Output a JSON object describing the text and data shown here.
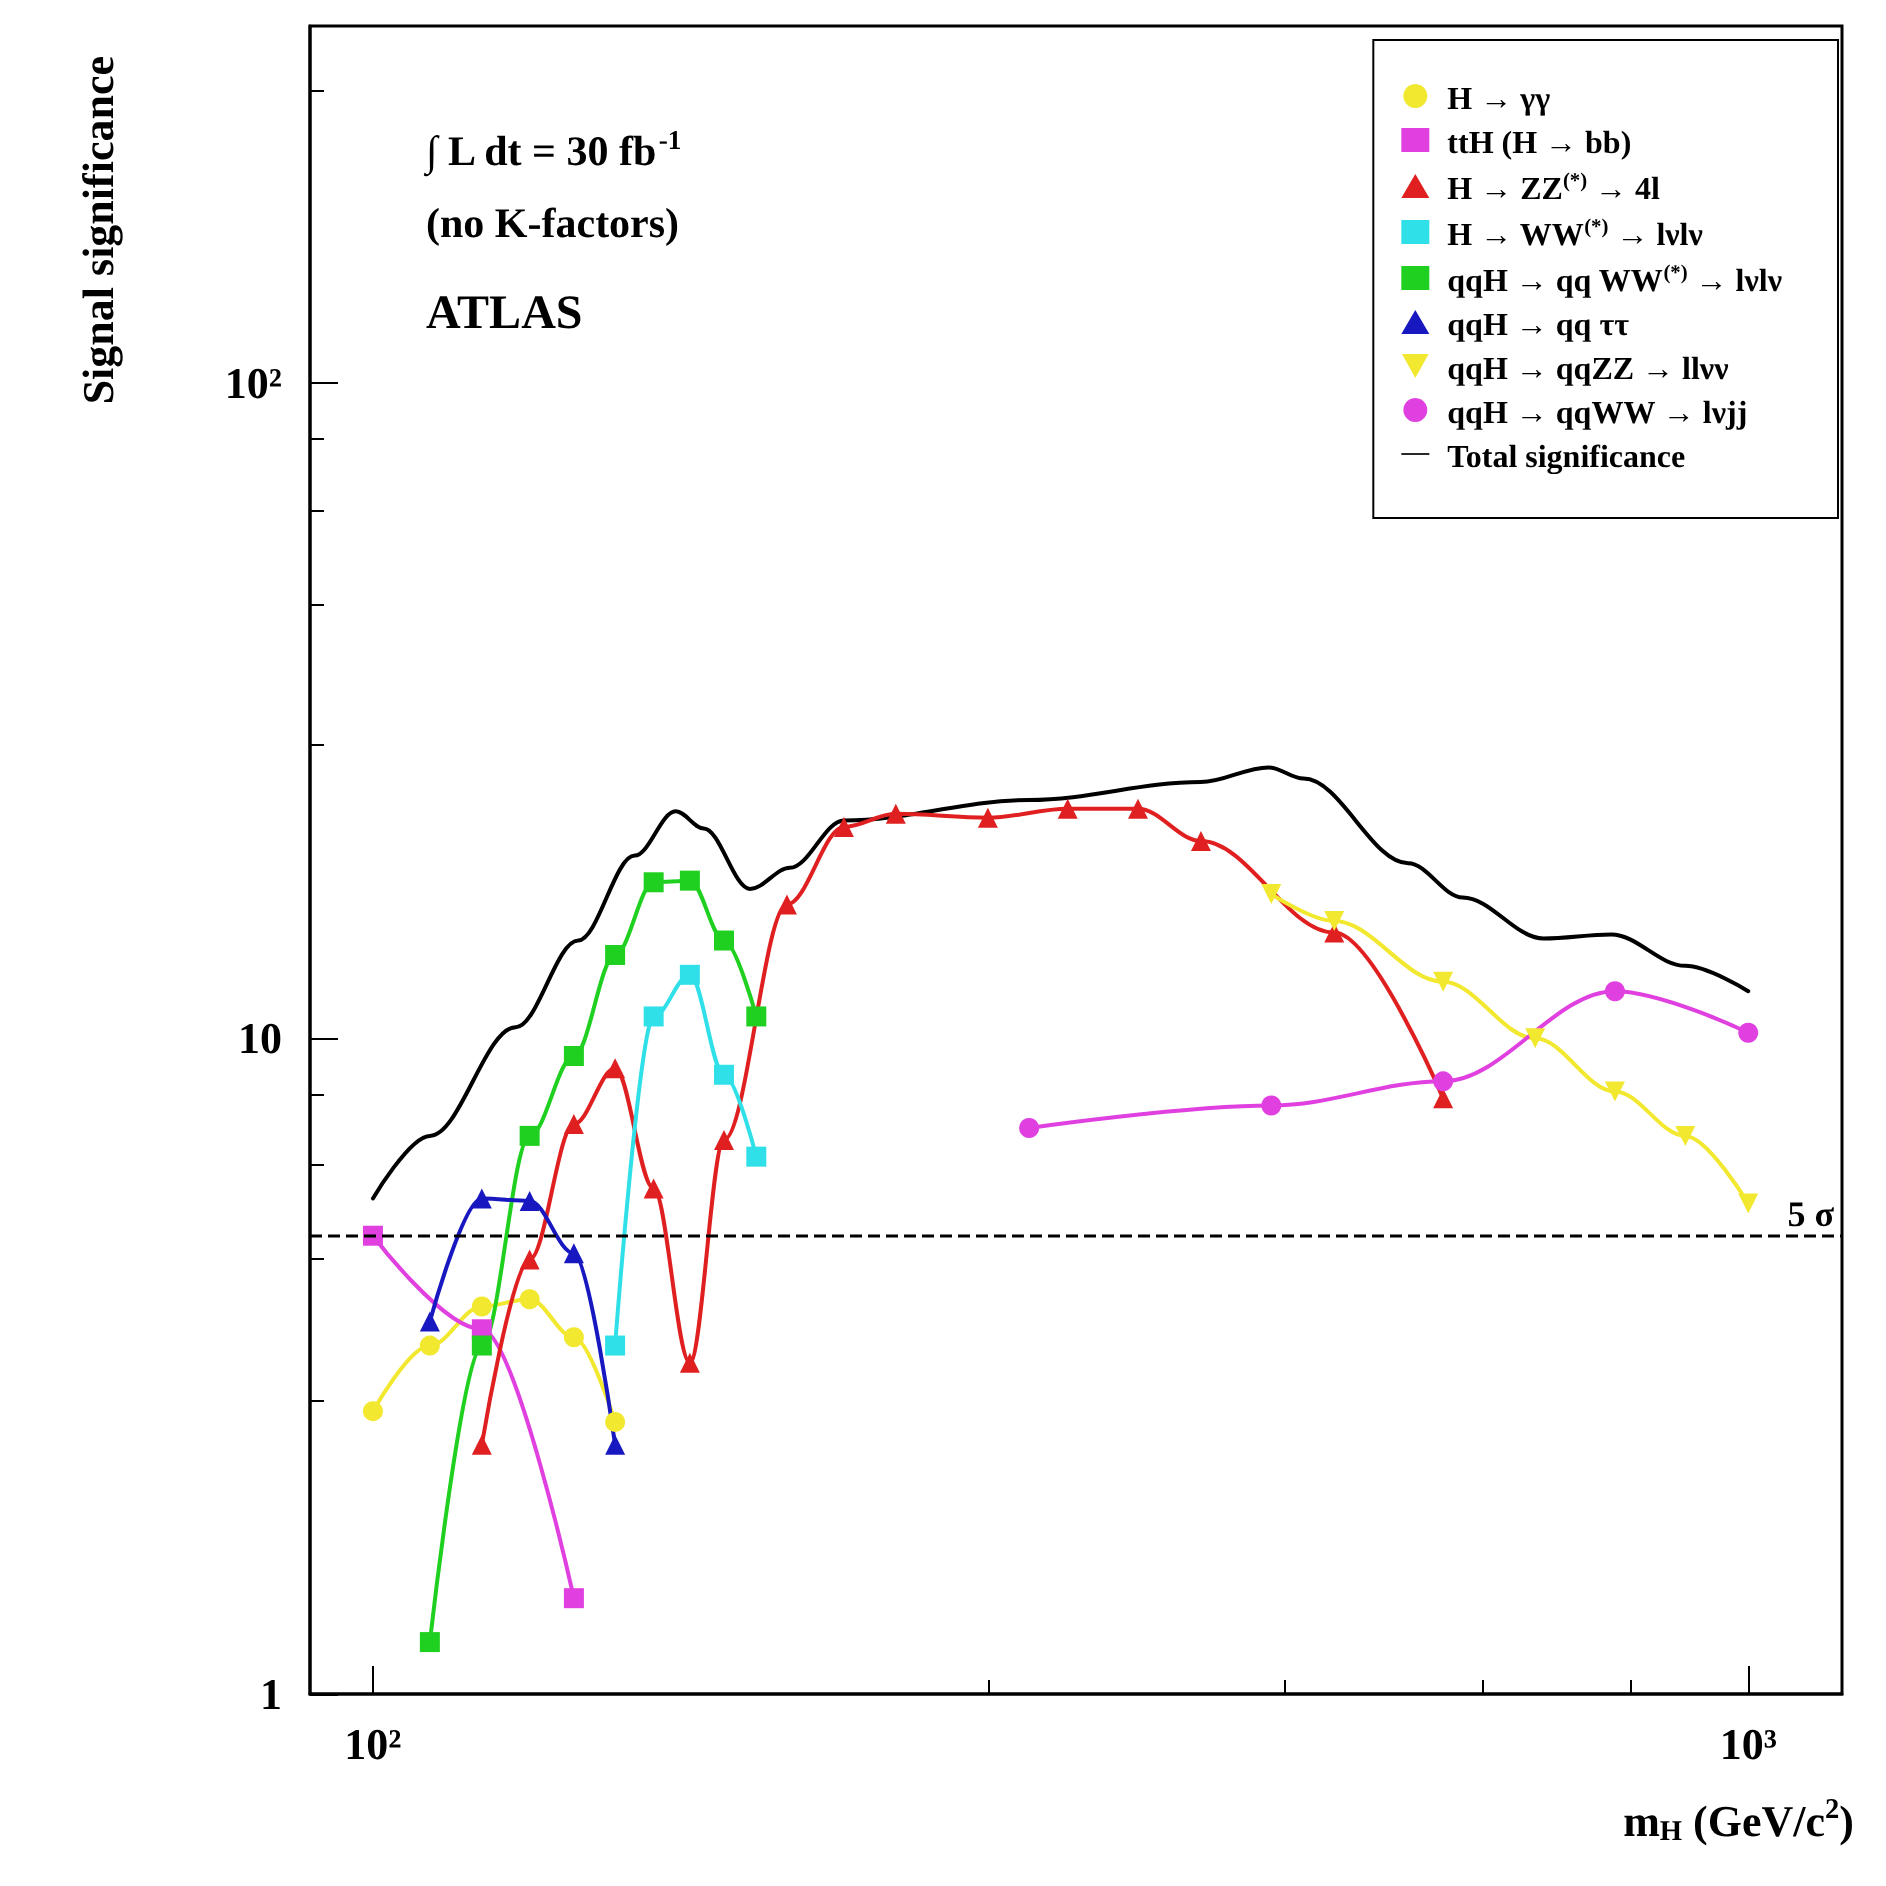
{
  "chart_data": {
    "type": "line",
    "xlabel": "m$_{H}$ (GeV/c$^{2}$)",
    "ylabel": "Signal significance",
    "log": "xy",
    "xlim": [
      90,
      1170
    ],
    "ylim": [
      1,
      350
    ],
    "xticks": [
      {
        "value": 100,
        "label": "10²"
      },
      {
        "value": 1000,
        "label": "10³"
      }
    ],
    "yticks": [
      1,
      10,
      {
        "value": 100,
        "label": "10²"
      }
    ],
    "grid": false,
    "legend": "top right",
    "line_style": "solid",
    "annotations": [
      "∫ L dt = 30 fb$^{-1}$",
      "(no K-factors)",
      "ATLAS"
    ],
    "ref_lines": [
      {
        "axis": "y",
        "value": 5,
        "label": "5 σ",
        "color": "#000000",
        "line_style": "dashed"
      }
    ],
    "series": [
      {
        "name": "H → γγ",
        "color": "#f2e830",
        "marker": "circle",
        "x": [
          100,
          110,
          120,
          130,
          140,
          150
        ],
        "values": [
          2.7,
          3.4,
          3.9,
          4.0,
          3.5,
          2.6
        ]
      },
      {
        "name": "ttH (H → bb)",
        "color": "#e040e0",
        "marker": "square",
        "x": [
          100,
          120,
          140
        ],
        "values": [
          5.0,
          3.6,
          1.4
        ]
      },
      {
        "name": "H → ZZ$^{(*)}$ → 4l",
        "color": "#e02020",
        "marker": "triangle",
        "x": [
          120,
          130,
          140,
          150,
          160,
          170,
          180,
          200,
          220,
          240,
          280,
          320,
          360,
          400,
          500,
          600
        ],
        "values": [
          2.4,
          4.6,
          7.4,
          9.0,
          5.9,
          3.2,
          7.0,
          16,
          21,
          22,
          21.7,
          22.4,
          22.4,
          20,
          14.5,
          8.1
        ]
      },
      {
        "name": "H → WW$^{(*)}$ → lνlν",
        "color": "#30e0e8",
        "marker": "square",
        "x": [
          150,
          160,
          170,
          180,
          190
        ],
        "values": [
          3.4,
          10.8,
          12.5,
          8.8,
          6.6
        ]
      },
      {
        "name": "qqH → qq WW$^{(*)}$ → lνlν",
        "color": "#20d020",
        "marker": "square",
        "x": [
          110,
          120,
          130,
          140,
          150,
          160,
          170,
          180,
          190
        ],
        "values": [
          1.2,
          3.4,
          7.1,
          9.4,
          13.4,
          17.3,
          17.4,
          14.1,
          10.8
        ]
      },
      {
        "name": "qqH → qq ττ",
        "color": "#1818c0",
        "marker": "triangle",
        "x": [
          110,
          120,
          130,
          140,
          150
        ],
        "values": [
          3.7,
          5.7,
          5.65,
          4.7,
          2.4
        ]
      },
      {
        "name": "qqH → qqZZ → llνν",
        "color": "#f2e830",
        "marker": "triangle-down",
        "x": [
          450,
          500,
          600,
          700,
          800,
          900,
          1000
        ],
        "values": [
          16.6,
          15.1,
          12.2,
          10.0,
          8.3,
          7.1,
          5.6
        ]
      },
      {
        "name": "qqH → qqWW → lνjj",
        "color": "#e040e0",
        "marker": "circle",
        "x": [
          300,
          450,
          600,
          800,
          1000
        ],
        "values": [
          7.3,
          7.9,
          8.6,
          11.8,
          10.2
        ]
      },
      {
        "name": "Total significance",
        "color": "#000000",
        "marker": "none",
        "x": [
          100,
          110,
          127,
          141,
          155,
          166,
          174,
          188,
          201,
          220,
          300,
          400,
          448,
          475,
          566,
          620,
          710,
          795,
          900,
          1000
        ],
        "values": [
          5.7,
          7.1,
          10.4,
          14.1,
          19.0,
          22.2,
          20.9,
          16.9,
          18.2,
          21.5,
          23.1,
          24.6,
          25.9,
          24.9,
          18.5,
          16.4,
          14.2,
          14.4,
          12.9,
          11.8
        ]
      }
    ]
  }
}
